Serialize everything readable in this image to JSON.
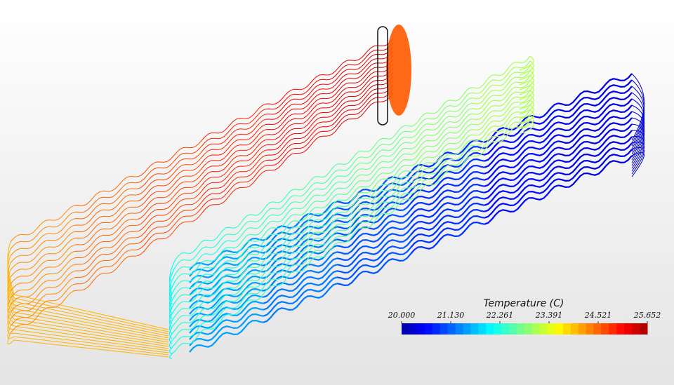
{
  "legend": {
    "title": "Temperature (C)",
    "range": [
      {
        "value": 20,
        "label": "20.000"
      },
      {
        "value": 25.652,
        "label": "25.652"
      }
    ],
    "ticks": [
      {
        "value": 20,
        "label": "20.000"
      },
      {
        "value": 21.13,
        "label": "21.130"
      },
      {
        "value": 22.261,
        "label": "22.261"
      },
      {
        "value": 23.391,
        "label": "23.391"
      },
      {
        "value": 24.521,
        "label": "24.521"
      },
      {
        "value": 25.652,
        "label": "25.652"
      }
    ]
  }
}
